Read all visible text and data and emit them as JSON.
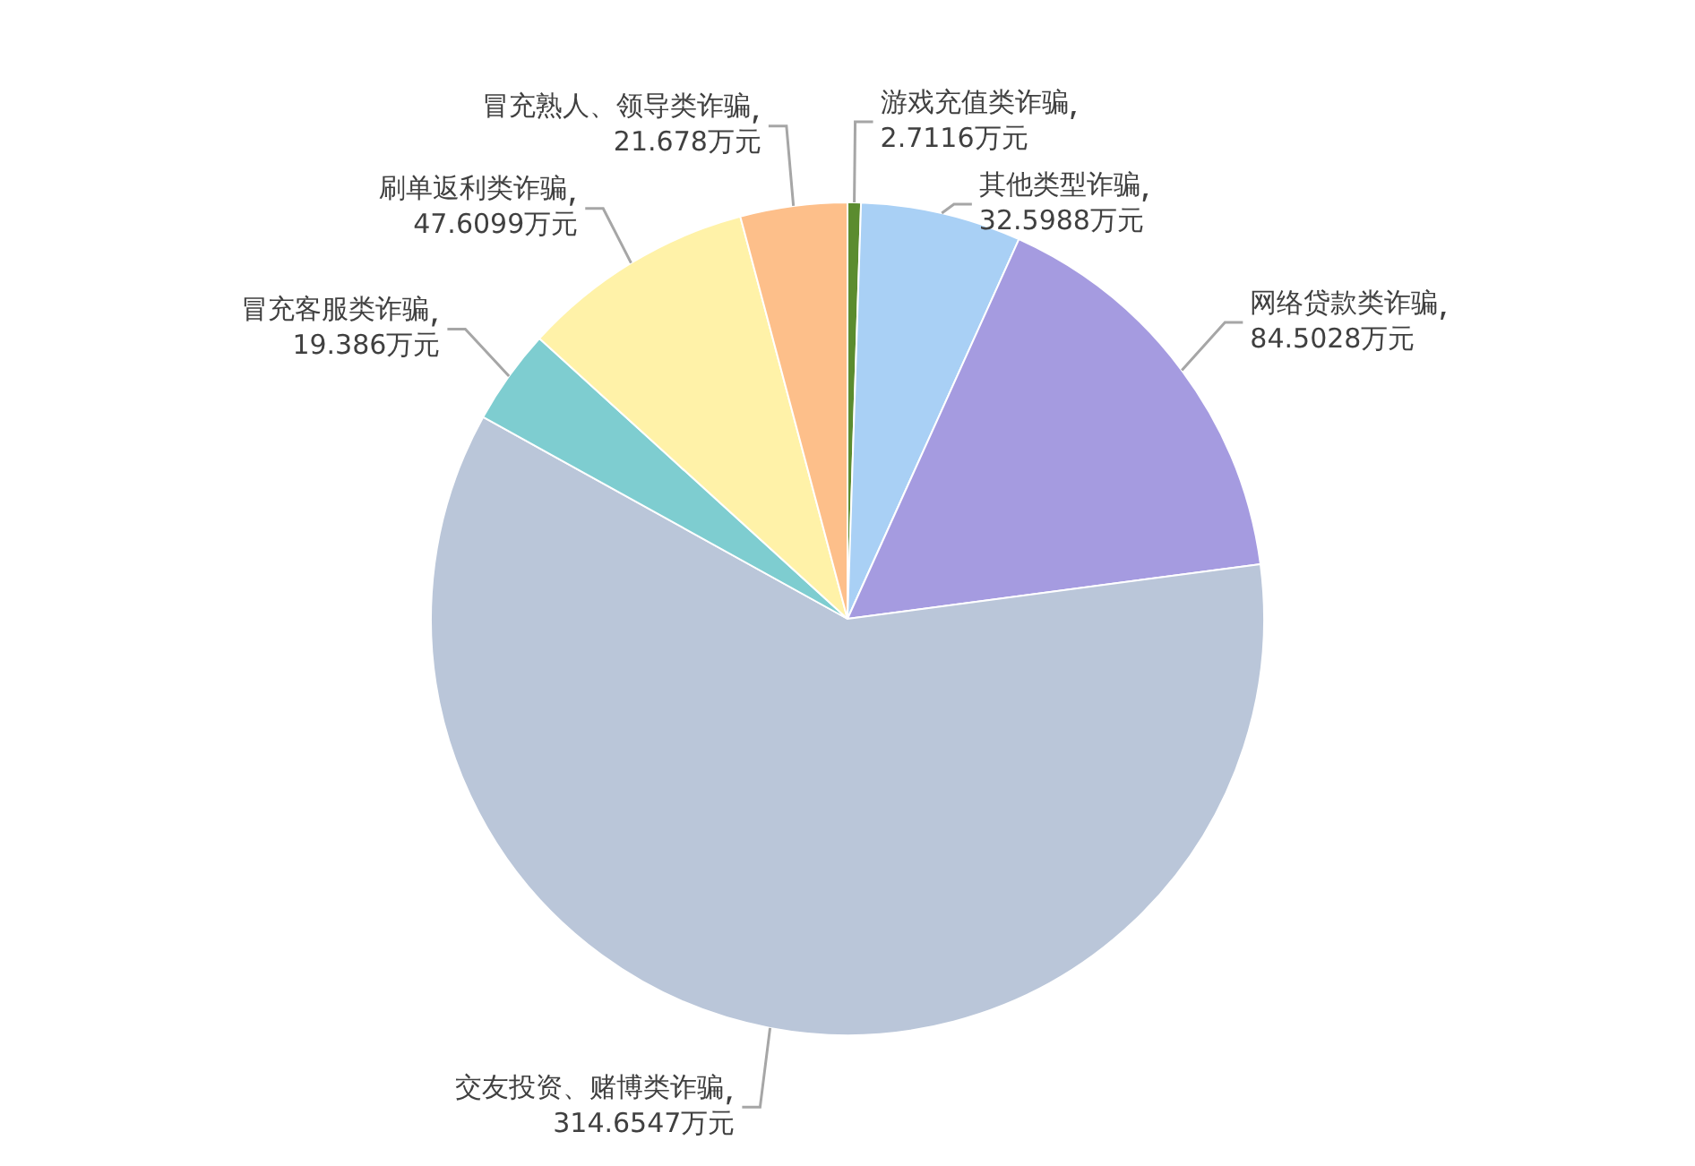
{
  "chart_data": {
    "type": "pie",
    "categories": [
      "游戏充值类诈骗",
      "其他类型诈骗",
      "网络贷款类诈骗",
      "交友投资、赌博类诈骗",
      "冒充客服类诈骗",
      "刷单返利类诈骗",
      "冒充熟人、领导类诈骗"
    ],
    "values": [
      2.7116,
      32.5988,
      84.5028,
      314.6547,
      19.386,
      47.6099,
      21.678
    ],
    "value_labels": [
      "2.7116万元",
      "32.5988万元",
      "84.5028万元",
      "314.6547万元",
      "19.386万元",
      "47.6099万元",
      "21.678万元"
    ],
    "colors": [
      "#5b8c2f",
      "#a9d0f5",
      "#a59be0",
      "#bac6d9",
      "#7ecdd0",
      "#fff2a8",
      "#fdbf8a"
    ],
    "legend": false
  }
}
